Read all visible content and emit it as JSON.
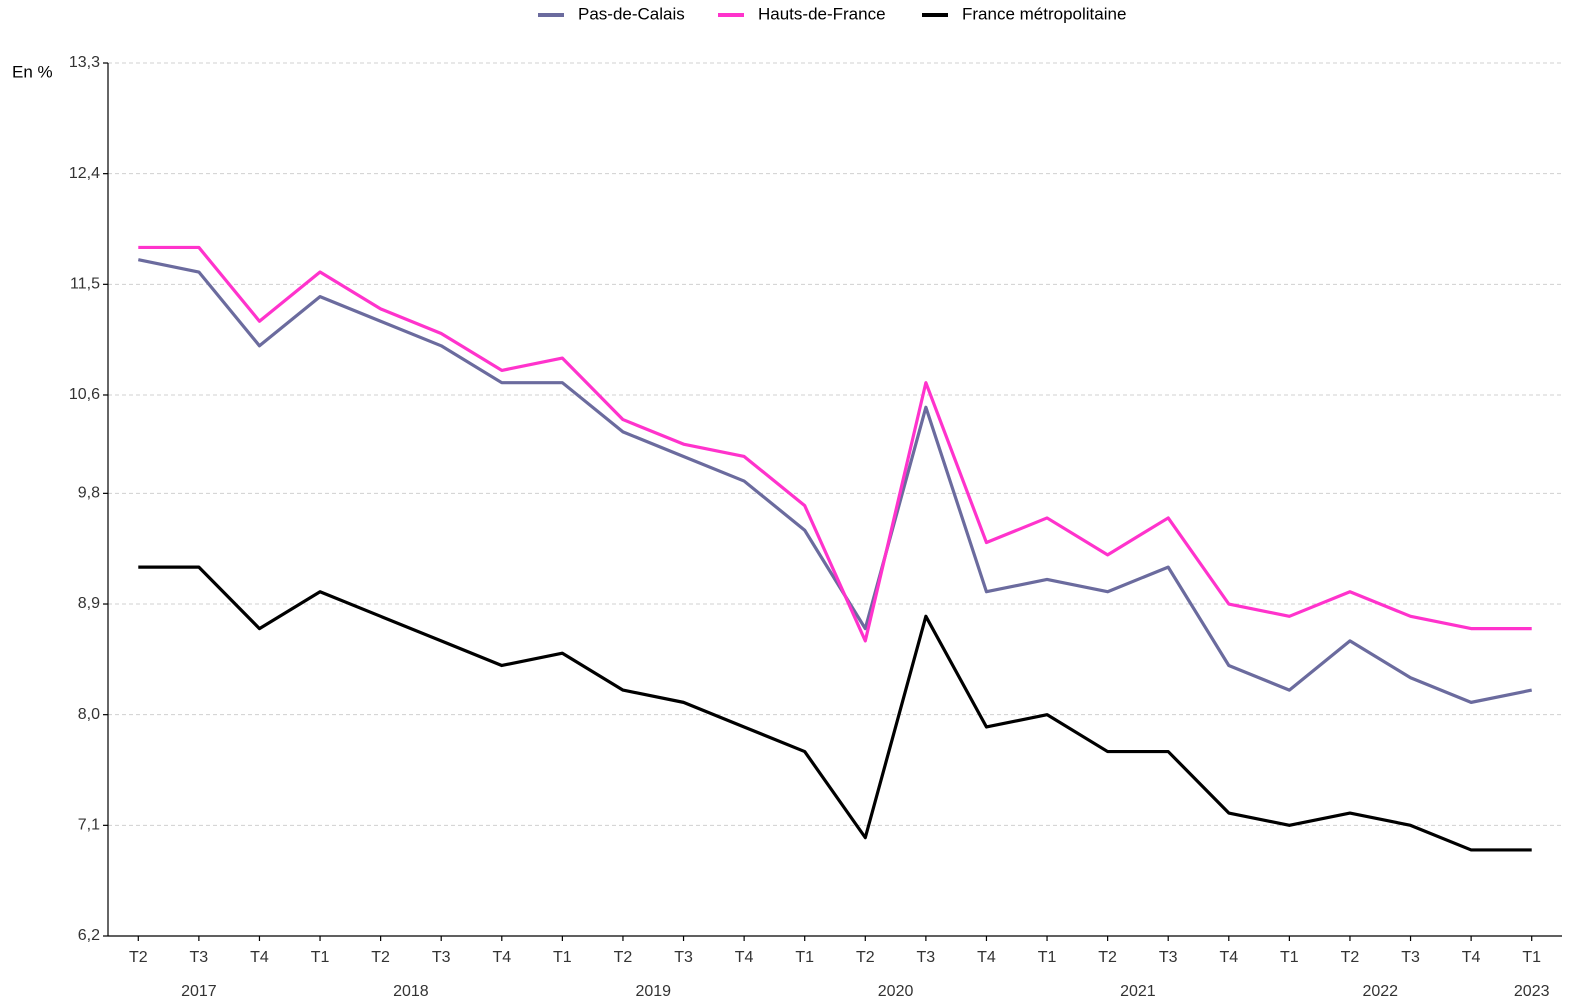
{
  "chart_data": {
    "type": "line",
    "y_label": "En %",
    "categories": [
      "T2",
      "T3",
      "T4",
      "T1",
      "T2",
      "T3",
      "T4",
      "T1",
      "T2",
      "T3",
      "T4",
      "T1",
      "T2",
      "T3",
      "T4",
      "T1",
      "T2",
      "T3",
      "T4",
      "T1",
      "T2",
      "T3",
      "T4",
      "T1"
    ],
    "year_groups": [
      {
        "label": "2017",
        "first": 0,
        "last": 2
      },
      {
        "label": "2018",
        "first": 3,
        "last": 6
      },
      {
        "label": "2019",
        "first": 7,
        "last": 10
      },
      {
        "label": "2020",
        "first": 11,
        "last": 14
      },
      {
        "label": "2021",
        "first": 15,
        "last": 18
      },
      {
        "label": "2022",
        "first": 19,
        "last": 22
      },
      {
        "label": "2023",
        "first": 23,
        "last": 23
      }
    ],
    "series": [
      {
        "name": "Pas-de-Calais",
        "color": "#6b6b9e",
        "values": [
          11.7,
          11.6,
          11.0,
          11.4,
          11.2,
          11.0,
          10.7,
          10.7,
          10.3,
          10.1,
          9.9,
          9.5,
          8.7,
          10.5,
          9.0,
          9.1,
          9.0,
          9.2,
          8.4,
          8.2,
          8.6,
          8.3,
          8.1,
          8.2
        ]
      },
      {
        "name": "Hauts-de-France",
        "color": "#ff33cc",
        "values": [
          11.8,
          11.8,
          11.2,
          11.6,
          11.3,
          11.1,
          10.8,
          10.9,
          10.4,
          10.2,
          10.1,
          9.7,
          8.6,
          10.7,
          9.4,
          9.6,
          9.3,
          9.6,
          8.9,
          8.8,
          9.0,
          8.8,
          8.7,
          8.7
        ]
      },
      {
        "name": "France métropolitaine",
        "color": "#000000",
        "values": [
          9.2,
          9.2,
          8.7,
          9.0,
          8.8,
          8.6,
          8.4,
          8.5,
          8.2,
          8.1,
          7.9,
          7.7,
          7.0,
          8.8,
          7.9,
          8.0,
          7.7,
          7.7,
          7.2,
          7.1,
          7.2,
          7.1,
          6.9,
          6.9
        ]
      }
    ],
    "ylim": [
      6.2,
      13.3
    ],
    "yticks": [
      {
        "value": 6.2,
        "label": "6,2"
      },
      {
        "value": 7.1,
        "label": "7,1"
      },
      {
        "value": 8.0,
        "label": "8,0"
      },
      {
        "value": 8.9,
        "label": "8,9"
      },
      {
        "value": 9.8,
        "label": "9,8"
      },
      {
        "value": 10.6,
        "label": "10,6"
      },
      {
        "value": 11.5,
        "label": "11,5"
      },
      {
        "value": 12.4,
        "label": "12,4"
      },
      {
        "value": 13.3,
        "label": "13,3"
      }
    ],
    "grid": true,
    "legend": "top"
  }
}
